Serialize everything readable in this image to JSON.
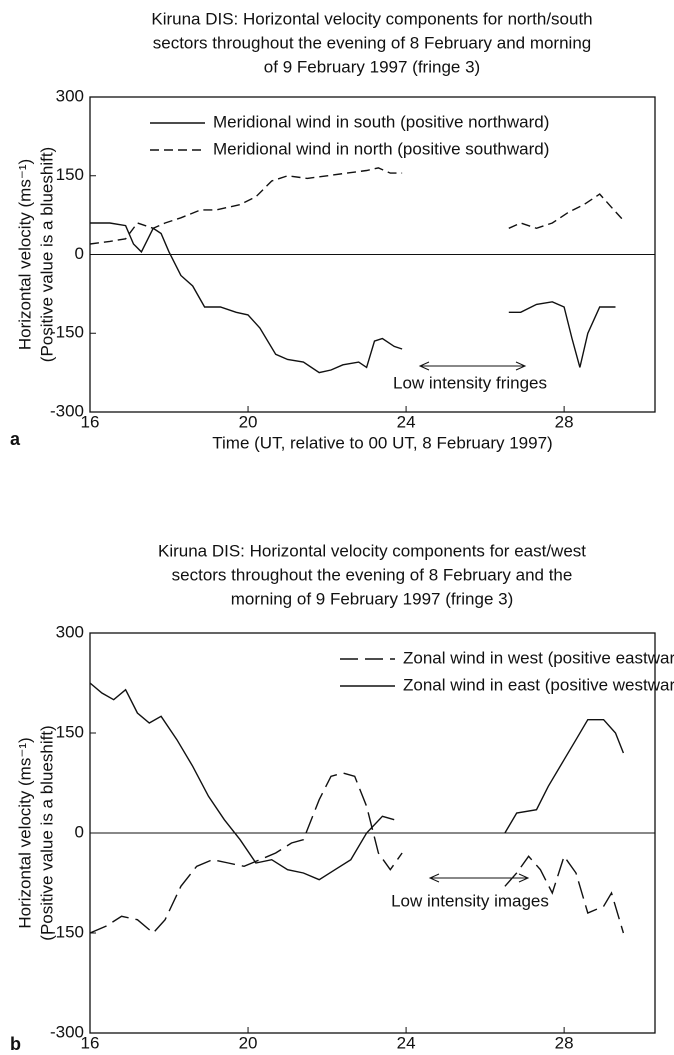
{
  "chart_data": [
    {
      "type": "line",
      "title": [
        "Kiruna DIS: Horizontal velocity components for north/south",
        "sectors throughout the evening of 8 February and morning",
        "of 9 February 1997 (fringe 3)"
      ],
      "panel_label": "a",
      "xlabel": "Time (UT, relative to 00 UT, 8 February 1997)",
      "ylabel": [
        "Horizontal velocity (ms⁻¹)",
        "(Positive value is a blueshift)"
      ],
      "xlim": [
        16,
        30.3
      ],
      "xticks": [
        16,
        20,
        24,
        28
      ],
      "ylim": [
        -300,
        300
      ],
      "yticks": [
        300,
        150,
        0,
        -150,
        -300
      ],
      "zero_line": true,
      "legend": "upper center",
      "annotation": "Low intensity fringes",
      "series": [
        {
          "name": "Meridional wind in south (positive northward)",
          "color": "#111",
          "line_style": "solid",
          "x": [
            16,
            16.5,
            16.9,
            17.1,
            17.3,
            17.6,
            17.8,
            18.0,
            18.3,
            18.6,
            18.9,
            19.3,
            19.7,
            20.0,
            20.3,
            20.7,
            21.0,
            21.4,
            21.8,
            22.1,
            22.4,
            22.8,
            23.0,
            23.2,
            23.4,
            23.7,
            23.9,
            null,
            26.6,
            26.9,
            27.3,
            27.7,
            28.0,
            28.2,
            28.4,
            28.6,
            28.9,
            29.3
          ],
          "values": [
            60,
            60,
            55,
            20,
            5,
            50,
            40,
            5,
            -40,
            -60,
            -100,
            -100,
            -110,
            -115,
            -140,
            -190,
            -200,
            -205,
            -225,
            -220,
            -210,
            -205,
            -215,
            -165,
            -160,
            -175,
            -180,
            null,
            -110,
            -110,
            -95,
            -90,
            -100,
            -160,
            -215,
            -150,
            -100,
            -100
          ]
        },
        {
          "name": "Meridional wind in north (positive southward)",
          "color": "#111",
          "line_style": "dashed",
          "x": [
            16,
            16.5,
            16.9,
            17.2,
            17.6,
            17.9,
            18.3,
            18.8,
            19.2,
            19.8,
            20.2,
            20.6,
            21.0,
            21.5,
            22.0,
            22.5,
            23.0,
            23.3,
            23.6,
            23.9,
            null,
            26.6,
            26.9,
            27.3,
            27.7,
            28.1,
            28.5,
            28.9,
            29.2,
            29.5
          ],
          "values": [
            20,
            25,
            30,
            60,
            50,
            60,
            70,
            85,
            85,
            95,
            110,
            140,
            150,
            145,
            150,
            155,
            160,
            165,
            155,
            155,
            null,
            50,
            60,
            50,
            60,
            80,
            95,
            115,
            90,
            65
          ]
        }
      ]
    },
    {
      "type": "line",
      "title": [
        "Kiruna DIS: Horizontal velocity components for east/west",
        "sectors throughout the evening of 8 February and the",
        "morning of 9 February 1997 (fringe 3)"
      ],
      "panel_label": "b",
      "xlabel": "Time (UT, relative to 00 UT, 8 February 1997)",
      "ylabel": [
        "Horizontal velocity (ms⁻¹)",
        "(Positive value is a blueshift)"
      ],
      "xlim": [
        16,
        30.3
      ],
      "xticks": [
        16,
        20,
        24,
        28
      ],
      "ylim": [
        -300,
        300
      ],
      "yticks": [
        300,
        150,
        0,
        -150,
        -300
      ],
      "zero_line": true,
      "legend": "upper right",
      "annotation": "Low intensity images",
      "series": [
        {
          "name": "Zonal wind in west (positive eastward)",
          "color": "#111",
          "line_style": "long-dashed",
          "x": [
            16,
            16.4,
            16.8,
            17.2,
            17.6,
            17.9,
            18.3,
            18.7,
            19.1,
            19.5,
            19.9,
            20.3,
            20.7,
            21.1,
            21.4,
            21.8,
            22.1,
            22.4,
            22.7,
            23.0,
            23.3,
            23.6,
            23.9,
            null,
            26.5,
            26.8,
            27.1,
            27.4,
            27.7,
            28.0,
            28.3,
            28.6,
            29.0,
            29.2,
            29.5
          ],
          "values": [
            -150,
            -140,
            -125,
            -130,
            -150,
            -130,
            -80,
            -50,
            -40,
            -45,
            -50,
            -40,
            -30,
            -15,
            -10,
            50,
            85,
            90,
            85,
            40,
            -30,
            -55,
            -30,
            null,
            -80,
            -60,
            -35,
            -55,
            -90,
            -35,
            -60,
            -120,
            -110,
            -90,
            -150
          ]
        },
        {
          "name": "Zonal wind in east (positive westward)",
          "color": "#111",
          "line_style": "solid",
          "x": [
            16,
            16.3,
            16.6,
            16.9,
            17.2,
            17.5,
            17.8,
            18.2,
            18.6,
            19.0,
            19.4,
            19.8,
            20.2,
            20.6,
            21.0,
            21.4,
            21.8,
            22.2,
            22.6,
            23.0,
            23.4,
            23.7,
            null,
            26.5,
            26.8,
            27.3,
            27.6,
            28.0,
            28.3,
            28.6,
            29.0,
            29.3,
            29.5
          ],
          "values": [
            225,
            210,
            200,
            215,
            180,
            165,
            175,
            140,
            100,
            55,
            20,
            -10,
            -45,
            -40,
            -55,
            -60,
            -70,
            -55,
            -40,
            0,
            25,
            20,
            null,
            0,
            30,
            35,
            70,
            110,
            140,
            170,
            170,
            150,
            120
          ]
        }
      ]
    }
  ]
}
